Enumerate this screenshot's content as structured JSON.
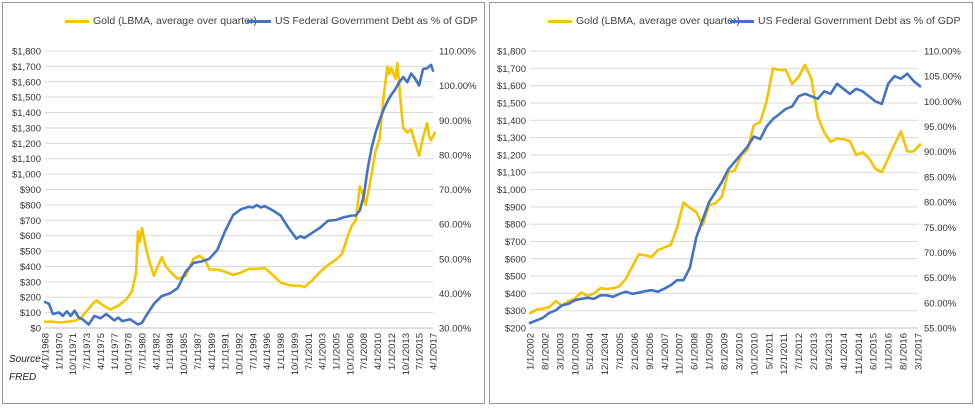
{
  "source": {
    "line1": "Source:",
    "line2": "FRED"
  },
  "colors": {
    "gold": "#f5c400",
    "debt": "#4472c4",
    "grid": "#d9d9d9"
  },
  "chart_data": [
    {
      "type": "line",
      "legend_placement": "top",
      "grid": true,
      "ylim_left": [
        0,
        1800
      ],
      "ylim_right": [
        30,
        110
      ],
      "x_tick_labels": [
        "4/1/1968",
        "1/1/1970",
        "10/1/1971",
        "7/1/1973",
        "4/1/1975",
        "1/1/1977",
        "10/1/1978",
        "7/1/1980",
        "4/1/1982",
        "1/1/1984",
        "10/1/1985",
        "7/1/1987",
        "4/1/1989",
        "1/1/1991",
        "10/1/1992",
        "7/1/1994",
        "4/1/1996",
        "1/1/1998",
        "10/1/1999",
        "7/1/2001",
        "4/1/2003",
        "1/1/2005",
        "10/1/2006",
        "7/1/2008",
        "4/1/2010",
        "1/1/2012",
        "10/1/2013",
        "7/1/2015",
        "4/1/2017"
      ],
      "y_left_ticks": [
        "$0",
        "$100",
        "$200",
        "$300",
        "$400",
        "$500",
        "$600",
        "$700",
        "$800",
        "$900",
        "$1,000",
        "$1,100",
        "$1,200",
        "$1,300",
        "$1,400",
        "$1,500",
        "$1,600",
        "$1,700",
        "$1,800"
      ],
      "y_right_ticks": [
        "30.00%",
        "40.00%",
        "50.00%",
        "60.00%",
        "70.00%",
        "80.00%",
        "90.00%",
        "100.00%",
        "110.00%"
      ],
      "series": [
        {
          "name": "Gold (LBMA, average over quarter)",
          "axis": "left",
          "color": "#f5c400",
          "x": [
            1968.25,
            1969,
            1970,
            1971,
            1972,
            1972.75,
            1973.5,
            1974.25,
            1974.75,
            1975.5,
            1976.5,
            1977.5,
            1978.5,
            1979.25,
            1979.75,
            1980,
            1980.25,
            1980.5,
            1981,
            1981.5,
            1982,
            1982.5,
            1983,
            1983.5,
            1984,
            1985,
            1986,
            1987,
            1987.75,
            1988.5,
            1989,
            1990,
            1991,
            1992,
            1993,
            1994,
            1995,
            1996,
            1997,
            1998,
            1999,
            1999.75,
            2000.5,
            2001,
            2002,
            2003,
            2004,
            2005,
            2005.75,
            2006.5,
            2007,
            2007.5,
            2008,
            2008.25,
            2008.75,
            2009.25,
            2010,
            2010.5,
            2011,
            2011.5,
            2011.75,
            2012,
            2012.5,
            2012.75,
            2013.25,
            2013.5,
            2014,
            2014.5,
            2015,
            2015.5,
            2016,
            2016.5,
            2016.75,
            2017,
            2017.5
          ],
          "y": [
            40,
            42,
            36,
            40,
            48,
            62,
            110,
            155,
            180,
            150,
            120,
            145,
            185,
            240,
            360,
            630,
            560,
            650,
            520,
            420,
            340,
            400,
            460,
            400,
            370,
            320,
            340,
            450,
            470,
            440,
            380,
            380,
            365,
            345,
            360,
            385,
            385,
            390,
            345,
            295,
            280,
            275,
            275,
            265,
            310,
            365,
            410,
            445,
            480,
            600,
            665,
            700,
            920,
            890,
            800,
            930,
            1150,
            1230,
            1500,
            1700,
            1650,
            1690,
            1620,
            1720,
            1420,
            1300,
            1270,
            1290,
            1200,
            1120,
            1240,
            1330,
            1250,
            1220,
            1270
          ]
        },
        {
          "name": "US Federal Government Debt as % of GDP",
          "axis": "right",
          "color": "#4472c4",
          "x": [
            1968.25,
            1968.75,
            1969.25,
            1970,
            1970.5,
            1971,
            1971.5,
            1972,
            1972.5,
            1973,
            1973.75,
            1974.5,
            1975.25,
            1976,
            1977,
            1977.5,
            1978,
            1979,
            1980,
            1980.5,
            1981,
            1982,
            1983,
            1984,
            1985,
            1986,
            1987,
            1988,
            1989,
            1990,
            1991,
            1992,
            1993,
            1994,
            1994.5,
            1995,
            1995.5,
            1996,
            1997,
            1998,
            1999,
            2000,
            2000.5,
            2001,
            2002,
            2003,
            2004,
            2005,
            2006,
            2006.5,
            2007,
            2007.5,
            2008,
            2008.5,
            2009,
            2009.5,
            2010,
            2010.5,
            2011,
            2011.5,
            2012,
            2012.5,
            2013,
            2013.5,
            2014,
            2014.5,
            2015,
            2015.5,
            2016,
            2016.5,
            2017,
            2017.25
          ],
          "y": [
            37.5,
            37,
            34,
            34.5,
            33.5,
            34.8,
            33.5,
            35,
            33,
            32.5,
            31,
            33.5,
            32.8,
            34,
            32.2,
            33,
            32,
            32.5,
            31,
            31.5,
            33.5,
            37,
            39.2,
            40,
            41.5,
            46.2,
            48.8,
            49.2,
            50,
            52.5,
            58,
            62.6,
            64.3,
            65,
            64.8,
            65.5,
            64.8,
            65.2,
            64,
            62.5,
            58.9,
            55.8,
            56.5,
            56,
            57.5,
            59,
            61,
            61.2,
            62,
            62.2,
            62.5,
            62.5,
            64,
            68,
            76,
            82,
            86.5,
            90,
            93,
            95.5,
            97.4,
            99,
            101,
            102.5,
            101,
            103.5,
            102,
            100,
            104.8,
            105,
            106,
            104.3
          ]
        }
      ]
    },
    {
      "type": "line",
      "legend_placement": "top",
      "grid": true,
      "ylim_left": [
        200,
        1800
      ],
      "ylim_right": [
        55,
        110
      ],
      "x_tick_labels": [
        "1/1/2002",
        "8/1/2002",
        "3/1/2003",
        "10/1/2003",
        "5/1/2004",
        "12/1/2004",
        "7/1/2005",
        "2/1/2006",
        "9/1/2006",
        "4/1/2007",
        "11/1/2007",
        "6/1/2008",
        "1/1/2009",
        "8/1/2009",
        "3/1/2010",
        "10/1/2010",
        "5/1/2011",
        "12/1/2011",
        "7/1/2012",
        "2/1/2013",
        "9/1/2013",
        "4/1/2014",
        "11/1/2014",
        "6/1/2015",
        "1/1/2016",
        "8/1/2016",
        "3/1/2017"
      ],
      "y_left_ticks": [
        "$200",
        "$300",
        "$400",
        "$500",
        "$600",
        "$700",
        "$800",
        "$900",
        "$1,000",
        "$1,100",
        "$1,200",
        "$1,300",
        "$1,400",
        "$1,500",
        "$1,600",
        "$1,700",
        "$1,800"
      ],
      "y_right_ticks": [
        "55.00%",
        "60.00%",
        "65.00%",
        "70.00%",
        "75.00%",
        "80.00%",
        "85.00%",
        "90.00%",
        "95.00%",
        "100.00%",
        "105.00%",
        "110.00%"
      ],
      "series": [
        {
          "name": "Gold (LBMA, average over quarter)",
          "axis": "left",
          "color": "#f5c400",
          "x": [
            2002,
            2002.25,
            2002.5,
            2002.75,
            2003,
            2003.25,
            2003.5,
            2003.75,
            2004,
            2004.25,
            2004.5,
            2004.75,
            2005,
            2005.25,
            2005.5,
            2005.75,
            2006,
            2006.25,
            2006.5,
            2006.75,
            2007,
            2007.25,
            2007.5,
            2007.75,
            2008,
            2008.25,
            2008.5,
            2008.75,
            2009,
            2009.25,
            2009.5,
            2009.75,
            2010,
            2010.25,
            2010.5,
            2010.75,
            2011,
            2011.25,
            2011.5,
            2011.75,
            2012,
            2012.25,
            2012.5,
            2012.75,
            2013,
            2013.25,
            2013.5,
            2013.75,
            2014,
            2014.25,
            2014.5,
            2014.75,
            2015,
            2015.25,
            2015.5,
            2015.75,
            2016,
            2016.25,
            2016.5,
            2016.75,
            2017,
            2017.25
          ],
          "y": [
            285,
            305,
            312,
            320,
            355,
            330,
            355,
            370,
            405,
            385,
            400,
            430,
            425,
            430,
            440,
            485,
            555,
            625,
            620,
            610,
            650,
            665,
            680,
            780,
            925,
            895,
            870,
            795,
            910,
            920,
            960,
            1100,
            1110,
            1195,
            1230,
            1370,
            1390,
            1510,
            1700,
            1690,
            1690,
            1610,
            1650,
            1720,
            1640,
            1420,
            1330,
            1275,
            1295,
            1290,
            1280,
            1200,
            1215,
            1180,
            1120,
            1100,
            1180,
            1260,
            1335,
            1220,
            1220,
            1260
          ]
        },
        {
          "name": "US Federal Government Debt as % of GDP",
          "axis": "right",
          "color": "#4472c4",
          "x": [
            2002,
            2002.25,
            2002.5,
            2002.75,
            2003,
            2003.25,
            2003.5,
            2003.75,
            2004,
            2004.25,
            2004.5,
            2004.75,
            2005,
            2005.25,
            2005.5,
            2005.75,
            2006,
            2006.25,
            2006.5,
            2006.75,
            2007,
            2007.25,
            2007.5,
            2007.75,
            2008,
            2008.25,
            2008.5,
            2008.75,
            2009,
            2009.25,
            2009.5,
            2009.75,
            2010,
            2010.25,
            2010.5,
            2010.75,
            2011,
            2011.25,
            2011.5,
            2011.75,
            2012,
            2012.25,
            2012.5,
            2012.75,
            2013,
            2013.25,
            2013.5,
            2013.75,
            2014,
            2014.25,
            2014.5,
            2014.75,
            2015,
            2015.25,
            2015.5,
            2015.75,
            2016,
            2016.25,
            2016.5,
            2016.75,
            2017,
            2017.25
          ],
          "y": [
            56,
            56.5,
            57,
            58,
            58.5,
            59.5,
            59.8,
            60.5,
            60.8,
            61,
            60.8,
            61.5,
            61.5,
            61.2,
            61.8,
            62.2,
            61.8,
            62,
            62.3,
            62.5,
            62.2,
            62.8,
            63.5,
            64.5,
            64.5,
            67,
            73,
            76.5,
            80,
            82,
            84,
            86.5,
            88,
            89.5,
            91,
            93,
            92.5,
            95,
            96.5,
            97.5,
            98.5,
            99,
            101,
            101.5,
            101,
            100.5,
            102,
            101.5,
            103.5,
            102.5,
            101.5,
            102.5,
            102,
            101,
            100,
            99.5,
            103.5,
            105,
            104.5,
            105.5,
            104,
            103
          ]
        }
      ]
    }
  ]
}
